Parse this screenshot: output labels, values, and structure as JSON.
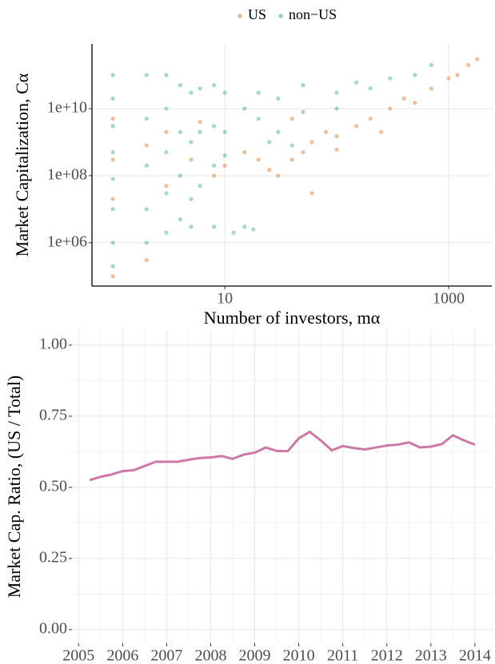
{
  "chart_data": [
    {
      "type": "scatter",
      "x_label": "Number of investors, mα",
      "y_label": "Market Capitalization, Cα",
      "log_x": true,
      "log_y": true,
      "grid": true,
      "axis_lines": true,
      "legend": "top",
      "xlim": [
        0.65,
        2430
      ],
      "ylim": [
        51000,
        850000000000
      ],
      "xticks": [
        10,
        1000
      ],
      "yticks": [
        {
          "value": 1000000,
          "label": "1e+06"
        },
        {
          "value": 100000000,
          "label": "1e+08"
        },
        {
          "value": 10000000000,
          "label": "1e+10"
        }
      ],
      "series": [
        {
          "name": "US",
          "color": "#d95f02",
          "x": [
            1,
            1,
            1,
            1,
            2,
            2,
            3,
            3,
            5,
            6,
            8,
            10,
            15,
            20,
            25,
            30,
            40,
            50,
            60,
            80,
            100,
            150,
            200,
            300,
            400,
            500,
            700,
            1000,
            1200,
            1500,
            1800,
            60,
            100,
            250,
            40
          ],
          "values": [
            5000000000.0,
            300000000.0,
            20000000.0,
            100000.0,
            800000000.0,
            300000.0,
            2000000000.0,
            50000000.0,
            300000000.0,
            4000000000.0,
            100000000.0,
            200000000.0,
            500000000.0,
            300000000.0,
            150000000.0,
            100000000.0,
            300000000.0,
            500000000.0,
            1000000000.0,
            2000000000.0,
            1500000000.0,
            3000000000.0,
            5000000000.0,
            10000000000.0,
            20000000000.0,
            15000000000.0,
            40000000000.0,
            80000000000.0,
            100000000000.0,
            200000000000.0,
            300000000000.0,
            30000000.0,
            600000000.0,
            2000000000.0,
            5000000000.0
          ]
        },
        {
          "name": "non−US",
          "color": "#1b9e77",
          "x": [
            1,
            1,
            1,
            1,
            1,
            1,
            1,
            1,
            2,
            2,
            2,
            2,
            2,
            3,
            3,
            3,
            3,
            3,
            4,
            4,
            4,
            4,
            5,
            5,
            5,
            5,
            6,
            6,
            6,
            8,
            8,
            8,
            8,
            10,
            10,
            10,
            12,
            15,
            18,
            15,
            20,
            20,
            30,
            30,
            50,
            50,
            100,
            100,
            150,
            200,
            300,
            500,
            700,
            40,
            25
          ],
          "values": [
            100000000000.0,
            20000000000.0,
            3000000000.0,
            500000000.0,
            80000000.0,
            10000000.0,
            1000000.0,
            200000.0,
            100000000000.0,
            5000000000.0,
            200000000.0,
            10000000.0,
            1000000.0,
            100000000000.0,
            10000000000.0,
            500000000.0,
            30000000.0,
            2000000.0,
            50000000000.0,
            2000000000.0,
            100000000.0,
            5000000.0,
            30000000000.0,
            1000000000.0,
            20000000.0,
            3000000.0,
            40000000000.0,
            2000000000.0,
            50000000.0,
            50000000000.0,
            3000000000.0,
            200000000.0,
            3000000.0,
            30000000000.0,
            2000000000.0,
            400000000.0,
            2000000.0,
            3000000.0,
            2500000.0,
            10000000000.0,
            5000000000.0,
            30000000000.0,
            20000000000.0,
            2000000000.0,
            50000000000.0,
            8000000000.0,
            30000000000.0,
            10000000000.0,
            60000000000.0,
            40000000000.0,
            80000000000.0,
            100000000000.0,
            200000000000.0,
            800000000.0,
            1000000000.0
          ]
        }
      ]
    },
    {
      "type": "line",
      "y_label": "Market Cap. Ratio, (US / Total)",
      "grid": true,
      "axis_lines": false,
      "xlim": [
        2004.85,
        2014.42
      ],
      "ylim": [
        -0.048,
        1.053
      ],
      "xticks": [
        2005,
        2006,
        2007,
        2008,
        2009,
        2010,
        2011,
        2012,
        2013,
        2014
      ],
      "yticks": [
        {
          "value": 0,
          "label": "0.00"
        },
        {
          "value": 0.25,
          "label": "0.25"
        },
        {
          "value": 0.5,
          "label": "0.50"
        },
        {
          "value": 0.75,
          "label": "0.75"
        },
        {
          "value": 1,
          "label": "1.00"
        }
      ],
      "x": [
        2005.25,
        2005.5,
        2005.75,
        2006,
        2006.25,
        2006.5,
        2006.75,
        2007,
        2007.25,
        2007.5,
        2007.75,
        2008,
        2008.25,
        2008.5,
        2008.75,
        2009,
        2009.25,
        2009.5,
        2009.75,
        2010,
        2010.25,
        2010.5,
        2010.75,
        2011,
        2011.25,
        2011.5,
        2011.75,
        2012,
        2012.25,
        2012.5,
        2012.75,
        2013,
        2013.25,
        2013.5,
        2013.75,
        2014
      ],
      "values": [
        0.525,
        0.537,
        0.545,
        0.557,
        0.56,
        0.575,
        0.59,
        0.59,
        0.59,
        0.597,
        0.603,
        0.605,
        0.61,
        0.6,
        0.615,
        0.622,
        0.64,
        0.628,
        0.627,
        0.672,
        0.695,
        0.665,
        0.63,
        0.645,
        0.638,
        0.633,
        0.64,
        0.647,
        0.65,
        0.658,
        0.64,
        0.643,
        0.652,
        0.683,
        0.665,
        0.65
      ],
      "color": "#cc79a7"
    }
  ]
}
